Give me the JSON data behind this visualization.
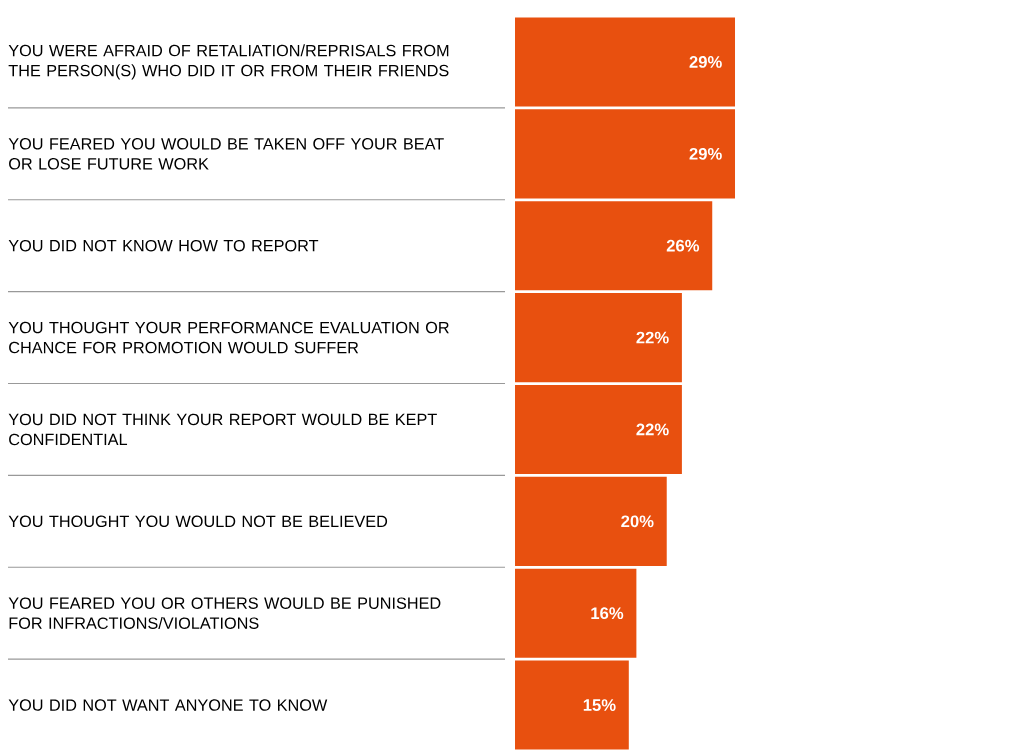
{
  "chart_data": {
    "type": "bar",
    "orientation": "horizontal",
    "categories": [
      "YOU WERE AFRAID OF RETALIATION/REPRISALS FROM THE PERSON(S) WHO DID IT OR FROM THEIR FRIENDS",
      "YOU FEARED YOU WOULD BE TAKEN OFF YOUR BEAT OR LOSE FUTURE WORK",
      "YOU DID NOT KNOW HOW TO REPORT",
      "YOU THOUGHT YOUR PERFORMANCE EVALUATION OR CHANCE FOR PROMOTION WOULD SUFFER",
      "YOU DID NOT THINK YOUR REPORT WOULD BE KEPT CONFIDENTIAL",
      "YOU THOUGHT YOU WOULD NOT BE BELIEVED",
      "YOU FEARED YOU OR OTHERS WOULD BE PUNISHED FOR INFRACTIONS/VIOLATIONS",
      "YOU DID NOT WANT ANYONE TO KNOW"
    ],
    "values": [
      29,
      29,
      26,
      22,
      22,
      20,
      16,
      15
    ],
    "value_labels": [
      "29%",
      "29%",
      "26%",
      "22%",
      "22%",
      "20%",
      "16%",
      "15%"
    ],
    "color": "#e8500f"
  }
}
